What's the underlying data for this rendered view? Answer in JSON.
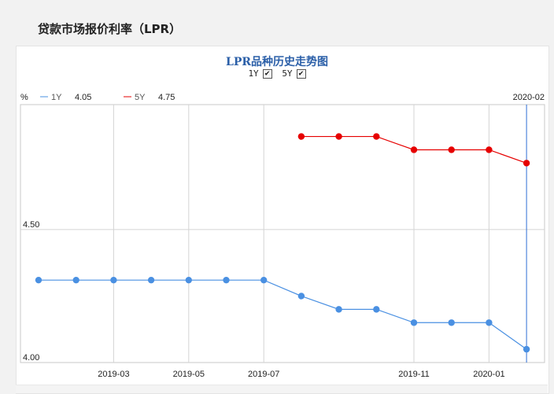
{
  "page": {
    "title": "贷款市场报价利率（LPR）"
  },
  "chart_header": {
    "title": "LPR品种历史走势图",
    "toggles": [
      {
        "label": "1Y",
        "checked": true
      },
      {
        "label": "5Y",
        "checked": true
      }
    ],
    "check_glyph": "✔"
  },
  "legend": {
    "unit": "%",
    "date": "2020-02",
    "items": [
      {
        "name": "1Y",
        "value": "4.05",
        "color": "#4a90e2"
      },
      {
        "name": "5Y",
        "value": "4.75",
        "color": "#e60000"
      }
    ]
  },
  "chart_data": {
    "type": "line",
    "x": [
      "2019-01",
      "2019-02",
      "2019-03",
      "2019-04",
      "2019-05",
      "2019-06",
      "2019-07",
      "2019-08",
      "2019-09",
      "2019-10",
      "2019-11",
      "2019-12",
      "2020-01",
      "2020-02"
    ],
    "x_tick_labels": [
      "2019-03",
      "2019-05",
      "2019-07",
      "2019-11",
      "2020-01"
    ],
    "series": [
      {
        "name": "1Y",
        "color": "#4a90e2",
        "values": [
          4.31,
          4.31,
          4.31,
          4.31,
          4.31,
          4.31,
          4.31,
          4.25,
          4.2,
          4.2,
          4.15,
          4.15,
          4.15,
          4.05
        ]
      },
      {
        "name": "5Y",
        "color": "#e60000",
        "values": [
          null,
          null,
          null,
          null,
          null,
          null,
          null,
          4.85,
          4.85,
          4.85,
          4.8,
          4.8,
          4.8,
          4.75
        ]
      }
    ],
    "ylim": [
      4.0,
      4.97
    ],
    "y_tick_labels": [
      "4.00",
      "4.50"
    ],
    "y_tick_values": [
      4.0,
      4.5
    ],
    "cursor_x": "2020-02",
    "grid": true
  }
}
